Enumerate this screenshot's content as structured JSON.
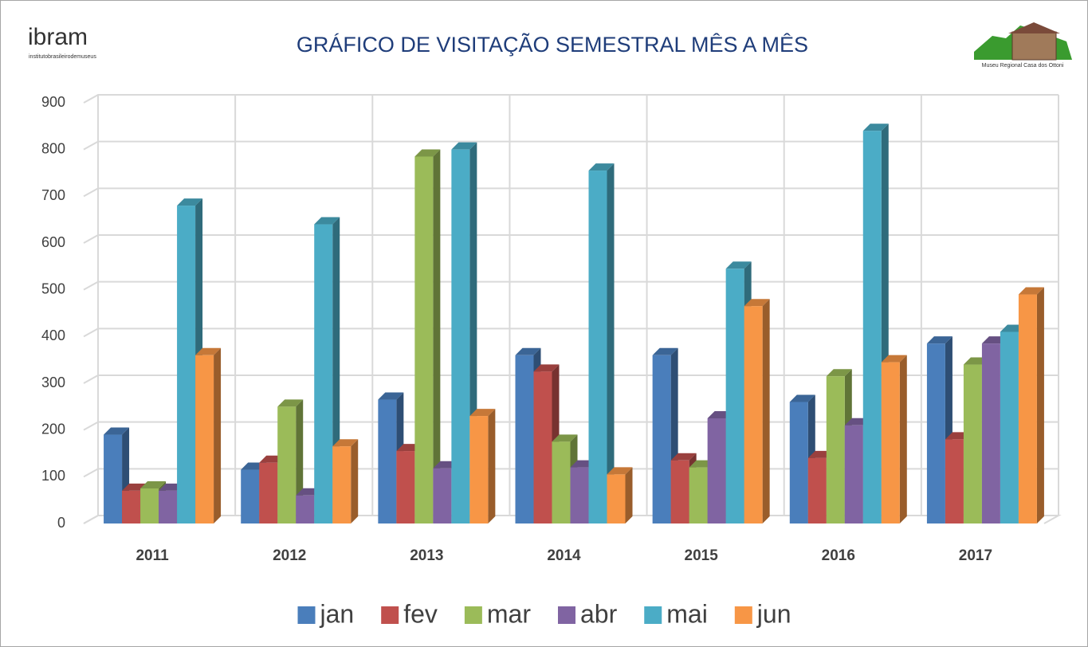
{
  "chart_data": {
    "type": "bar3d",
    "title": "GRÁFICO DE VISITAÇÃO SEMESTRAL MÊS A MÊS",
    "logo_left": "ibram",
    "logo_left_sub": "institutobrasileirodemuseus",
    "logo_right_caption": "Museu Regional Casa dos Ottoni",
    "categories": [
      "2011",
      "2012",
      "2013",
      "2014",
      "2015",
      "2016",
      "2017"
    ],
    "series": [
      {
        "name": "jan",
        "color": "#4a7ebb",
        "values": [
          190,
          115,
          265,
          360,
          360,
          260,
          385
        ]
      },
      {
        "name": "fev",
        "color": "#c0504d",
        "values": [
          70,
          130,
          155,
          325,
          135,
          140,
          180
        ]
      },
      {
        "name": "mar",
        "color": "#9bbb59",
        "values": [
          75,
          250,
          785,
          175,
          120,
          315,
          340
        ]
      },
      {
        "name": "abr",
        "color": "#8064a2",
        "values": [
          70,
          60,
          118,
          120,
          225,
          210,
          385
        ]
      },
      {
        "name": "mai",
        "color": "#4bacc6",
        "values": [
          680,
          640,
          800,
          755,
          545,
          840,
          410
        ]
      },
      {
        "name": "jun",
        "color": "#f79646",
        "values": [
          360,
          165,
          230,
          105,
          465,
          345,
          490
        ]
      }
    ],
    "ylim": [
      0,
      900
    ],
    "yticks": [
      0,
      100,
      200,
      300,
      400,
      500,
      600,
      700,
      800,
      900
    ],
    "grid": true,
    "legend": "bottom"
  }
}
